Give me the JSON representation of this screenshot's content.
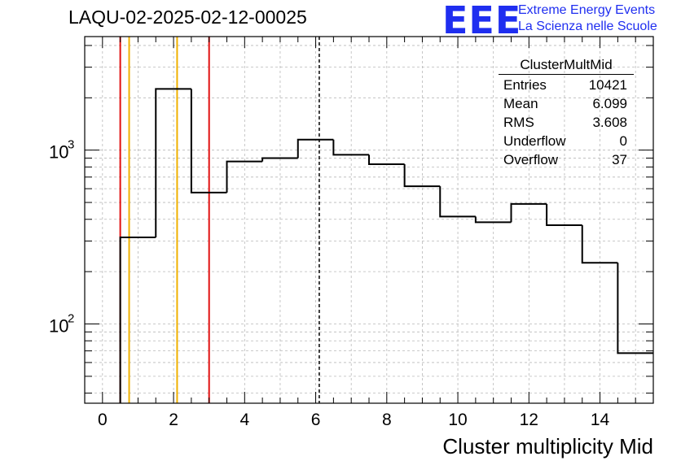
{
  "chart_data": {
    "type": "bar",
    "title": "LAQU-02-2025-02-12-00025",
    "xlabel": "Cluster multiplicity Mid",
    "ylabel": "",
    "y_scale": "log",
    "xlim": [
      -0.5,
      15.5
    ],
    "ylim": [
      35,
      4500
    ],
    "grid": true,
    "bins": [
      {
        "low": 0.5,
        "high": 1.5,
        "value": 315
      },
      {
        "low": 1.5,
        "high": 2.5,
        "value": 2250
      },
      {
        "low": 2.5,
        "high": 3.5,
        "value": 570
      },
      {
        "low": 3.5,
        "high": 4.5,
        "value": 860
      },
      {
        "low": 4.5,
        "high": 5.5,
        "value": 900
      },
      {
        "low": 5.5,
        "high": 6.5,
        "value": 1150
      },
      {
        "low": 6.5,
        "high": 7.5,
        "value": 940
      },
      {
        "low": 7.5,
        "high": 8.5,
        "value": 830
      },
      {
        "low": 8.5,
        "high": 9.5,
        "value": 620
      },
      {
        "low": 9.5,
        "high": 10.5,
        "value": 415
      },
      {
        "low": 10.5,
        "high": 11.5,
        "value": 385
      },
      {
        "low": 11.5,
        "high": 12.5,
        "value": 490
      },
      {
        "low": 12.5,
        "high": 13.5,
        "value": 370
      },
      {
        "low": 13.5,
        "high": 14.5,
        "value": 225
      },
      {
        "low": 14.5,
        "high": 15.5,
        "value": 68
      }
    ],
    "x_ticks": [
      "0",
      "2",
      "4",
      "6",
      "8",
      "10",
      "12",
      "14"
    ],
    "y_ticks": [
      {
        "value": 100,
        "base": "10",
        "exp": "2"
      },
      {
        "value": 1000,
        "base": "10",
        "exp": "3"
      }
    ],
    "vertical_lines": [
      {
        "x": 0.5,
        "color": "#e01010",
        "style": "solid"
      },
      {
        "x": 0.75,
        "color": "#f0b000",
        "style": "solid"
      },
      {
        "x": 2.1,
        "color": "#f0b000",
        "style": "solid"
      },
      {
        "x": 3.0,
        "color": "#e01010",
        "style": "solid"
      },
      {
        "x": 6.1,
        "color": "#000000",
        "style": "dashed"
      }
    ],
    "stats_box": {
      "name": "ClusterMultMid",
      "rows": [
        {
          "label": "Entries",
          "value": "10421"
        },
        {
          "label": "Mean",
          "value": "6.099"
        },
        {
          "label": "RMS",
          "value": "3.608"
        },
        {
          "label": "Underflow",
          "value": "0"
        },
        {
          "label": "Overflow",
          "value": "37"
        }
      ]
    }
  },
  "logo": {
    "text": "EEE",
    "line1": "Extreme Energy Events",
    "line2": "La Scienza nelle Scuole",
    "color": "#1f2ef0"
  }
}
